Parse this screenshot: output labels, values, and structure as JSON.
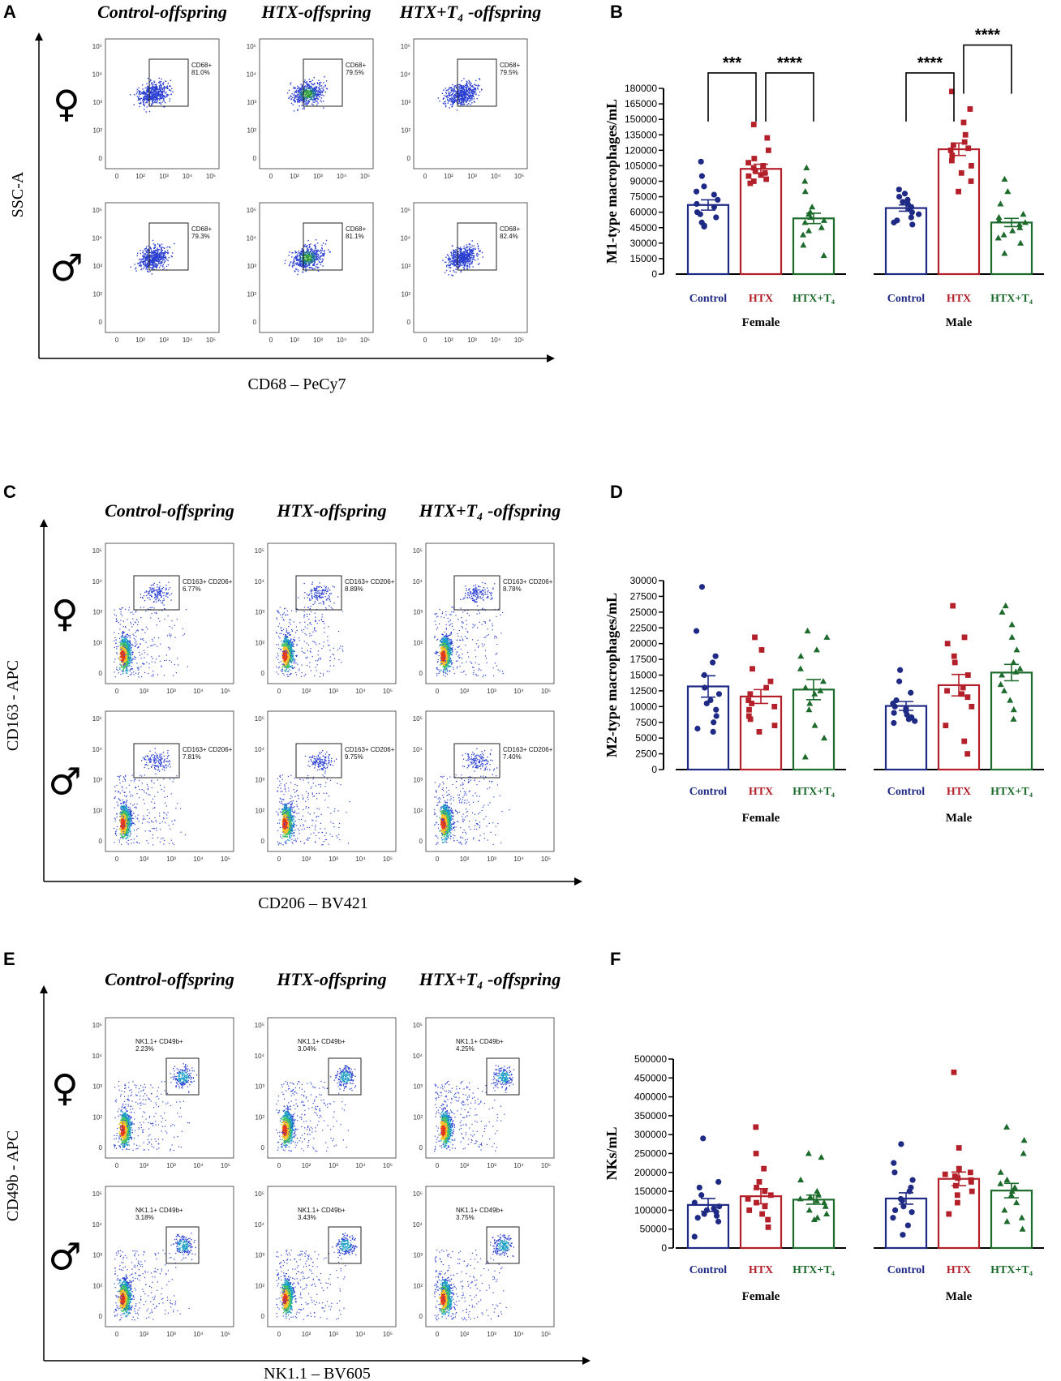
{
  "panel_letters": [
    "A",
    "B",
    "C",
    "D",
    "E",
    "F"
  ],
  "flow_panels": [
    {
      "letter": "A",
      "columns": [
        "Control-offspring",
        "HTX-offspring",
        "HTX+T₄ -offspring"
      ],
      "y_axis": "SSC-A",
      "x_axis": "CD68 – PeCy7",
      "style": "blue",
      "rows": [
        {
          "symbol": "♀",
          "gates": [
            [
              "CD68+",
              "81.0%"
            ],
            [
              "CD68+",
              "79.5%"
            ],
            [
              "CD68+",
              "79.5%"
            ]
          ]
        },
        {
          "symbol": "♂",
          "gates": [
            [
              "CD68+",
              "79.3%"
            ],
            [
              "CD68+",
              "81.1%"
            ],
            [
              "CD68+",
              "82.4%"
            ]
          ]
        }
      ]
    },
    {
      "letter": "C",
      "columns": [
        "Control-offspring",
        "HTX-offspring",
        "HTX+T₄ -offspring"
      ],
      "y_axis": "CD163 - APC",
      "x_axis": "CD206 – BV421",
      "style": "heat",
      "rows": [
        {
          "symbol": "♀",
          "gates": [
            [
              "CD163+ CD206+",
              "6.77%"
            ],
            [
              "CD163+ CD206+",
              "8.89%"
            ],
            [
              "CD163+ CD206+",
              "8.78%"
            ]
          ]
        },
        {
          "symbol": "♂",
          "gates": [
            [
              "CD163+ CD206+",
              "7.81%"
            ],
            [
              "CD163+ CD206+",
              "9.75%"
            ],
            [
              "CD163+ CD206+",
              "7.40%"
            ]
          ]
        }
      ]
    },
    {
      "letter": "E",
      "columns": [
        "Control-offspring",
        "HTX-offspring",
        "HTX+T₄ -offspring"
      ],
      "y_axis": "CD49b - APC",
      "x_axis": "NK1.1 – BV605",
      "style": "heat2",
      "rows": [
        {
          "symbol": "♀",
          "gates": [
            [
              "NK1.1+ CD49b+",
              "2.23%"
            ],
            [
              "NK1.1+ CD49b+",
              "3.04%"
            ],
            [
              "NK1.1+ CD49b+",
              "4.25%"
            ]
          ]
        },
        {
          "symbol": "♂",
          "gates": [
            [
              "NK1.1+ CD49b+",
              "3.18%"
            ],
            [
              "NK1.1+ CD49b+",
              "3.43%"
            ],
            [
              "NK1.1+ CD49b+",
              "3.75%"
            ]
          ]
        }
      ]
    }
  ],
  "flow_ticks": {
    "y": [
      "10⁵",
      "10⁴",
      "10³",
      "10²",
      "0"
    ],
    "x": [
      "0",
      "10²",
      "10³",
      "10⁴",
      "10⁵"
    ]
  },
  "colors": {
    "control": "#1f2a85",
    "htx": "#b4202a",
    "htx_t4": "#1d6b2c",
    "flow_blue": "#2a3fd1"
  },
  "chart_data": [
    {
      "letter": "B",
      "type": "bar",
      "ylabel": "M1-type macrophages/mL",
      "ylim": [
        0,
        180000
      ],
      "yticks": [
        0,
        15000,
        30000,
        45000,
        60000,
        75000,
        90000,
        105000,
        120000,
        135000,
        150000,
        165000,
        180000
      ],
      "sexes": [
        "Female",
        "Male"
      ],
      "groups": [
        "Control",
        "HTX",
        "HTX+T₄"
      ],
      "means": {
        "Female": [
          67000,
          102000,
          54000
        ],
        "Male": [
          64000,
          121000,
          50000
        ]
      },
      "sem": {
        "Female": [
          5000,
          4500,
          5000
        ],
        "Male": [
          3000,
          6000,
          4000
        ]
      },
      "points": {
        "Female": [
          [
            109000,
            95000,
            85000,
            80000,
            77000,
            72000,
            68000,
            65000,
            60000,
            58000,
            55000,
            50000,
            47000,
            46000
          ],
          [
            145000,
            132000,
            120000,
            112000,
            108000,
            105000,
            103000,
            100000,
            98000,
            96000,
            95000,
            92000,
            90000,
            88000
          ],
          [
            103000,
            90000,
            80000,
            65000,
            60000,
            58000,
            55000,
            52000,
            50000,
            45000,
            42000,
            38000,
            28000,
            18000
          ]
        ],
        "Male": [
          [
            82000,
            78000,
            75000,
            72000,
            70000,
            68000,
            65000,
            63000,
            60000,
            58000,
            55000,
            52000,
            50000,
            48000
          ],
          [
            177000,
            160000,
            147000,
            135000,
            128000,
            125000,
            122000,
            120000,
            115000,
            110000,
            105000,
            98000,
            90000,
            80000
          ],
          [
            92000,
            80000,
            68000,
            58000,
            55000,
            52000,
            50000,
            48000,
            45000,
            42000,
            38000,
            35000,
            30000,
            20000
          ]
        ]
      },
      "significance": [
        {
          "from": [
            0,
            0
          ],
          "to": [
            0,
            1
          ],
          "label": "***",
          "level": 195000
        },
        {
          "from": [
            0,
            1
          ],
          "to": [
            0,
            2
          ],
          "label": "****",
          "level": 195000
        },
        {
          "from": [
            1,
            0
          ],
          "to": [
            1,
            1
          ],
          "label": "****",
          "level": 195000
        },
        {
          "from": [
            1,
            1
          ],
          "to": [
            1,
            2
          ],
          "label": "****",
          "level": 222000
        }
      ]
    },
    {
      "letter": "D",
      "type": "bar",
      "ylabel": "M2-type macrophages/mL",
      "ylim": [
        0,
        30000
      ],
      "yticks": [
        0,
        2500,
        5000,
        7500,
        10000,
        12500,
        15000,
        17500,
        20000,
        22500,
        25000,
        27500,
        30000
      ],
      "sexes": [
        "Female",
        "Male"
      ],
      "groups": [
        "Control",
        "HTX",
        "HTX+T₄"
      ],
      "means": {
        "Female": [
          13200,
          11600,
          12700
        ],
        "Male": [
          10100,
          13400,
          15400
        ]
      },
      "sem": {
        "Female": [
          1700,
          1100,
          1600
        ],
        "Male": [
          700,
          1700,
          1300
        ]
      },
      "points": {
        "Female": [
          [
            29000,
            22000,
            18000,
            17000,
            15000,
            13000,
            12000,
            11000,
            10500,
            9500,
            8500,
            7500,
            6500,
            6000
          ],
          [
            21000,
            19000,
            16000,
            14000,
            13000,
            12000,
            11000,
            10500,
            10000,
            9500,
            8500,
            8000,
            7000,
            6000
          ],
          [
            22000,
            21000,
            19000,
            18000,
            16000,
            14000,
            13000,
            12500,
            12000,
            10500,
            9500,
            7000,
            5000,
            2000
          ]
        ],
        "Male": [
          [
            15800,
            14000,
            12200,
            11000,
            10500,
            10000,
            9700,
            9300,
            9000,
            8700,
            8300,
            8000,
            7700,
            7400
          ],
          [
            26000,
            21000,
            20000,
            18000,
            17000,
            15000,
            13000,
            12500,
            12000,
            11500,
            10000,
            7000,
            4500,
            2500
          ],
          [
            26000,
            25000,
            23000,
            21000,
            19000,
            17000,
            16000,
            15500,
            15000,
            13500,
            12500,
            11000,
            9500,
            8000
          ]
        ]
      },
      "significance": []
    },
    {
      "letter": "F",
      "type": "bar",
      "ylabel": "NKs/mL",
      "ylim": [
        0,
        500000
      ],
      "yticks": [
        0,
        50000,
        100000,
        150000,
        200000,
        250000,
        300000,
        350000,
        400000,
        450000,
        500000
      ],
      "sexes": [
        "Female",
        "Male"
      ],
      "groups": [
        "Control",
        "HTX",
        "HTX+T₄"
      ],
      "means": {
        "Female": [
          114000,
          137000,
          128000
        ],
        "Male": [
          131000,
          183000,
          152000
        ]
      },
      "sem": {
        "Female": [
          17000,
          20000,
          12000
        ],
        "Male": [
          15000,
          18000,
          19000
        ]
      },
      "points": {
        "Female": [
          [
            290000,
            175000,
            160000,
            140000,
            120000,
            110000,
            105000,
            100000,
            95000,
            90000,
            85000,
            80000,
            70000,
            30000
          ],
          [
            320000,
            250000,
            210000,
            175000,
            160000,
            150000,
            140000,
            130000,
            120000,
            110000,
            100000,
            90000,
            75000,
            55000
          ],
          [
            250000,
            240000,
            180000,
            150000,
            140000,
            135000,
            130000,
            125000,
            120000,
            110000,
            100000,
            90000,
            80000,
            75000
          ]
        ],
        "Male": [
          [
            275000,
            225000,
            200000,
            180000,
            160000,
            150000,
            130000,
            125000,
            110000,
            100000,
            95000,
            80000,
            60000,
            35000
          ],
          [
            465000,
            265000,
            210000,
            200000,
            195000,
            190000,
            185000,
            180000,
            175000,
            165000,
            150000,
            140000,
            120000,
            90000
          ],
          [
            320000,
            285000,
            250000,
            200000,
            180000,
            170000,
            160000,
            150000,
            140000,
            120000,
            100000,
            80000,
            70000,
            50000
          ]
        ]
      },
      "significance": []
    }
  ]
}
